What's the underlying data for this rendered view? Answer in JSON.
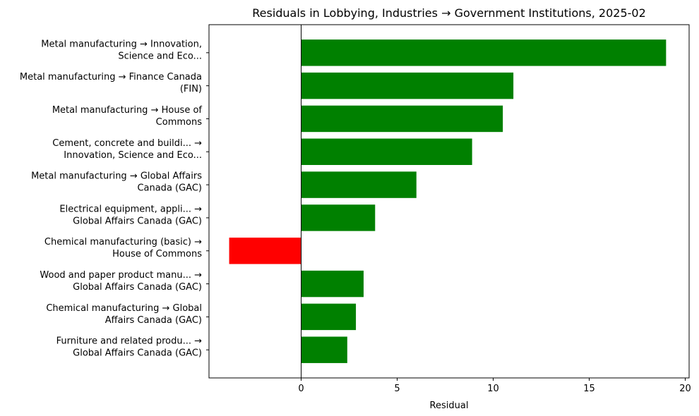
{
  "chart_data": {
    "type": "bar",
    "orientation": "horizontal",
    "title": "Residuals in Lobbying, Industries → Government Institutions, 2025-02",
    "xlabel": "Residual",
    "ylabel": "",
    "xlim": [
      -4.8,
      20.2
    ],
    "xticks": [
      0,
      5,
      10,
      15,
      20
    ],
    "grid": false,
    "positive_color": "#008000",
    "negative_color": "#ff0000",
    "categories": [
      [
        "Metal manufacturing → Innovation,",
        "Science and Eco..."
      ],
      [
        "Metal manufacturing → Finance Canada",
        "(FIN)"
      ],
      [
        "Metal manufacturing → House of",
        "Commons"
      ],
      [
        "Cement, concrete and buildi... →",
        "Innovation, Science and Eco..."
      ],
      [
        "Metal manufacturing → Global Affairs",
        "Canada (GAC)"
      ],
      [
        "Electrical equipment, appli... →",
        "Global Affairs Canada (GAC)"
      ],
      [
        "Chemical manufacturing (basic) →",
        "House of Commons"
      ],
      [
        "Wood and paper product manu... →",
        "Global Affairs Canada (GAC)"
      ],
      [
        "Chemical manufacturing → Global",
        "Affairs Canada (GAC)"
      ],
      [
        "Furniture and related produ... →",
        "Global Affairs Canada (GAC)"
      ]
    ],
    "values": [
      19.0,
      11.05,
      10.5,
      8.9,
      6.0,
      3.85,
      -3.75,
      3.25,
      2.85,
      2.4
    ]
  }
}
